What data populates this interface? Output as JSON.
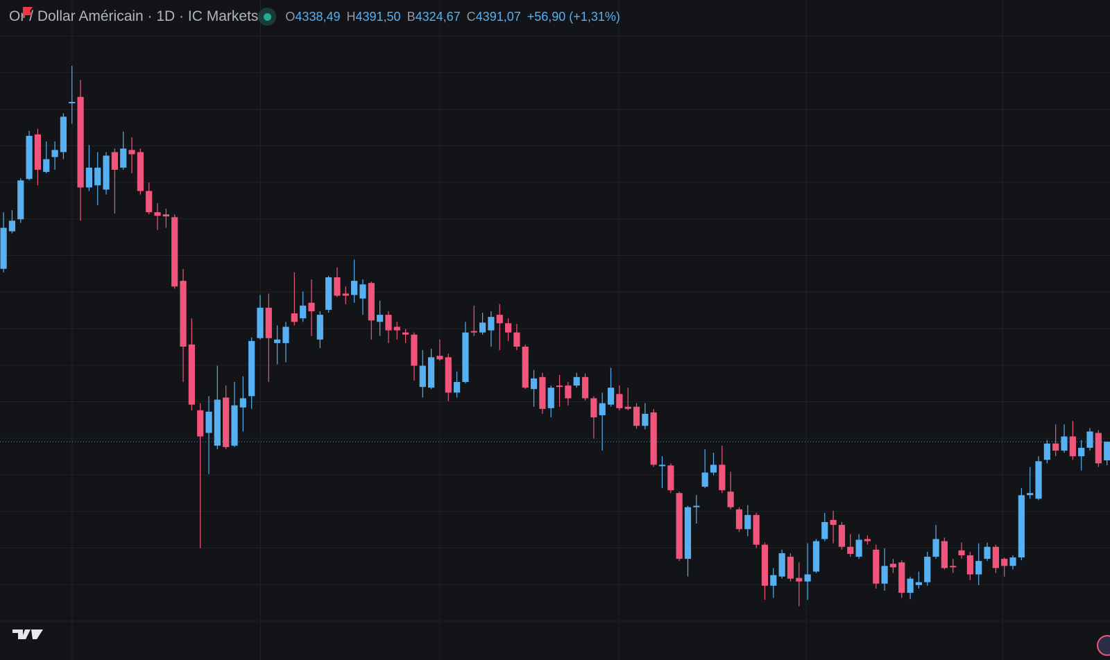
{
  "header": {
    "title": "Or / Dollar Américain · 1D · IC Markets",
    "ohlc": [
      {
        "label": "O",
        "value": "4338,49"
      },
      {
        "label": "H",
        "value": "4391,50"
      },
      {
        "label": "B",
        "value": "4324,67"
      },
      {
        "label": "C",
        "value": "4391,07"
      }
    ],
    "change": "+56,90 (+1,31%)"
  },
  "chart_data": {
    "type": "candlestick",
    "up_color": "#56b0f2",
    "down_color": "#f2557c",
    "ylim": [
      3774,
      5640
    ],
    "open": [
      4880,
      4986,
      5020,
      5134,
      5260,
      5154,
      5196,
      5210,
      5348,
      5366,
      5110,
      5116,
      5104,
      5210,
      5166,
      5216,
      5210,
      5100,
      5040,
      5034,
      5026,
      4846,
      4666,
      4480,
      4416,
      4380,
      4516,
      4380,
      4488,
      4520,
      4684,
      4770,
      4670,
      4670,
      4754,
      4740,
      4784,
      4680,
      4764,
      4856,
      4810,
      4806,
      4796,
      4840,
      4730,
      4750,
      4716,
      4700,
      4694,
      4546,
      4544,
      4634,
      4630,
      4530,
      4560,
      4704,
      4700,
      4706,
      4750,
      4726,
      4700,
      4660,
      4540,
      4574,
      4486,
      4550,
      4550,
      4550,
      4574,
      4514,
      4466,
      4496,
      4526,
      4490,
      4490,
      4436,
      4474,
      4322,
      4324,
      4246,
      4060,
      4206,
      4264,
      4304,
      4326,
      4250,
      4200,
      4144,
      4184,
      4100,
      3984,
      4010,
      4066,
      4006,
      3996,
      4024,
      4116,
      4170,
      4156,
      4094,
      4066,
      4116,
      4086,
      3990,
      4046,
      4050,
      3964,
      3986,
      3994,
      4066,
      4110,
      4040,
      4084,
      4070,
      4016,
      4060,
      4094,
      4060,
      4040,
      4064,
      4240,
      4230,
      4340,
      4386,
      4366,
      4406,
      4350,
      4374,
      4416,
      4338.49
    ],
    "high": [
      5040,
      5046,
      5136,
      5270,
      5276,
      5240,
      5240,
      5320,
      5454,
      5414,
      5230,
      5210,
      5210,
      5220,
      5268,
      5252,
      5220,
      5124,
      5066,
      5050,
      5034,
      4880,
      4740,
      4500,
      4520,
      4606,
      4550,
      4560,
      4576,
      4686,
      4806,
      4810,
      4720,
      4730,
      4870,
      4816,
      4850,
      4760,
      4860,
      4884,
      4830,
      4906,
      4850,
      4844,
      4790,
      4760,
      4730,
      4710,
      4700,
      4650,
      4654,
      4680,
      4640,
      4590,
      4730,
      4776,
      4756,
      4760,
      4780,
      4740,
      4724,
      4666,
      4594,
      4586,
      4550,
      4580,
      4560,
      4586,
      4584,
      4520,
      4530,
      4600,
      4550,
      4544,
      4500,
      4500,
      4484,
      4350,
      4330,
      4250,
      4210,
      4240,
      4370,
      4360,
      4380,
      4306,
      4206,
      4212,
      4190,
      4106,
      4034,
      4086,
      4076,
      4050,
      4104,
      4116,
      4190,
      4196,
      4164,
      4130,
      4130,
      4126,
      4100,
      4090,
      4060,
      4056,
      4010,
      4024,
      4080,
      4156,
      4120,
      4060,
      4106,
      4080,
      4104,
      4106,
      4100,
      4064,
      4070,
      4260,
      4320,
      4350,
      4396,
      4440,
      4440,
      4450,
      4396,
      4430,
      4424,
      4391.5
    ],
    "low": [
      4870,
      4980,
      5010,
      5130,
      5116,
      5150,
      5160,
      5190,
      5290,
      5016,
      5100,
      5060,
      5090,
      5036,
      5160,
      5150,
      5090,
      5034,
      4990,
      4996,
      4824,
      4560,
      4480,
      4090,
      4300,
      4370,
      4370,
      4376,
      4420,
      4484,
      4680,
      4560,
      4610,
      4616,
      4720,
      4730,
      4690,
      4656,
      4756,
      4800,
      4780,
      4784,
      4750,
      4680,
      4690,
      4670,
      4680,
      4670,
      4564,
      4516,
      4540,
      4620,
      4506,
      4516,
      4556,
      4690,
      4694,
      4660,
      4650,
      4676,
      4650,
      4540,
      4490,
      4470,
      4460,
      4490,
      4494,
      4544,
      4508,
      4400,
      4366,
      4490,
      4480,
      4480,
      4428,
      4426,
      4320,
      4260,
      4246,
      4054,
      4010,
      4160,
      4260,
      4296,
      4246,
      4200,
      4136,
      4124,
      4090,
      3944,
      3950,
      4004,
      3996,
      3926,
      3944,
      4020,
      4110,
      4104,
      4086,
      4066,
      4060,
      4100,
      3976,
      3970,
      4020,
      3950,
      3946,
      3976,
      3984,
      4060,
      4030,
      4020,
      4060,
      4000,
      3986,
      4054,
      4020,
      4010,
      4030,
      4056,
      4230,
      4226,
      4330,
      4350,
      4360,
      4340,
      4310,
      4366,
      4320,
      4324.67
    ],
    "close": [
      4996,
      5016,
      5130,
      5256,
      5160,
      5190,
      5216,
      5310,
      5352,
      5110,
      5166,
      5166,
      5200,
      5160,
      5220,
      5204,
      5100,
      5040,
      5030,
      5028,
      4830,
      4660,
      4496,
      4406,
      4476,
      4510,
      4376,
      4494,
      4514,
      4676,
      4770,
      4684,
      4680,
      4716,
      4730,
      4776,
      4760,
      4750,
      4856,
      4804,
      4804,
      4846,
      4836,
      4734,
      4750,
      4706,
      4706,
      4694,
      4606,
      4606,
      4630,
      4624,
      4530,
      4560,
      4700,
      4700,
      4728,
      4744,
      4726,
      4700,
      4660,
      4544,
      4570,
      4484,
      4544,
      4546,
      4514,
      4574,
      4514,
      4460,
      4500,
      4544,
      4486,
      4484,
      4436,
      4470,
      4326,
      4326,
      4254,
      4060,
      4206,
      4210,
      4304,
      4326,
      4254,
      4206,
      4144,
      4184,
      4100,
      3984,
      4014,
      4076,
      4004,
      3996,
      4016,
      4110,
      4164,
      4156,
      4094,
      4074,
      4114,
      4110,
      3990,
      4040,
      4036,
      3964,
      4004,
      3994,
      4066,
      4116,
      4034,
      4036,
      4070,
      4016,
      4054,
      4094,
      4034,
      4040,
      4064,
      4240,
      4246,
      4336,
      4386,
      4366,
      4406,
      4350,
      4374,
      4420,
      4330,
      4391.07
    ]
  }
}
